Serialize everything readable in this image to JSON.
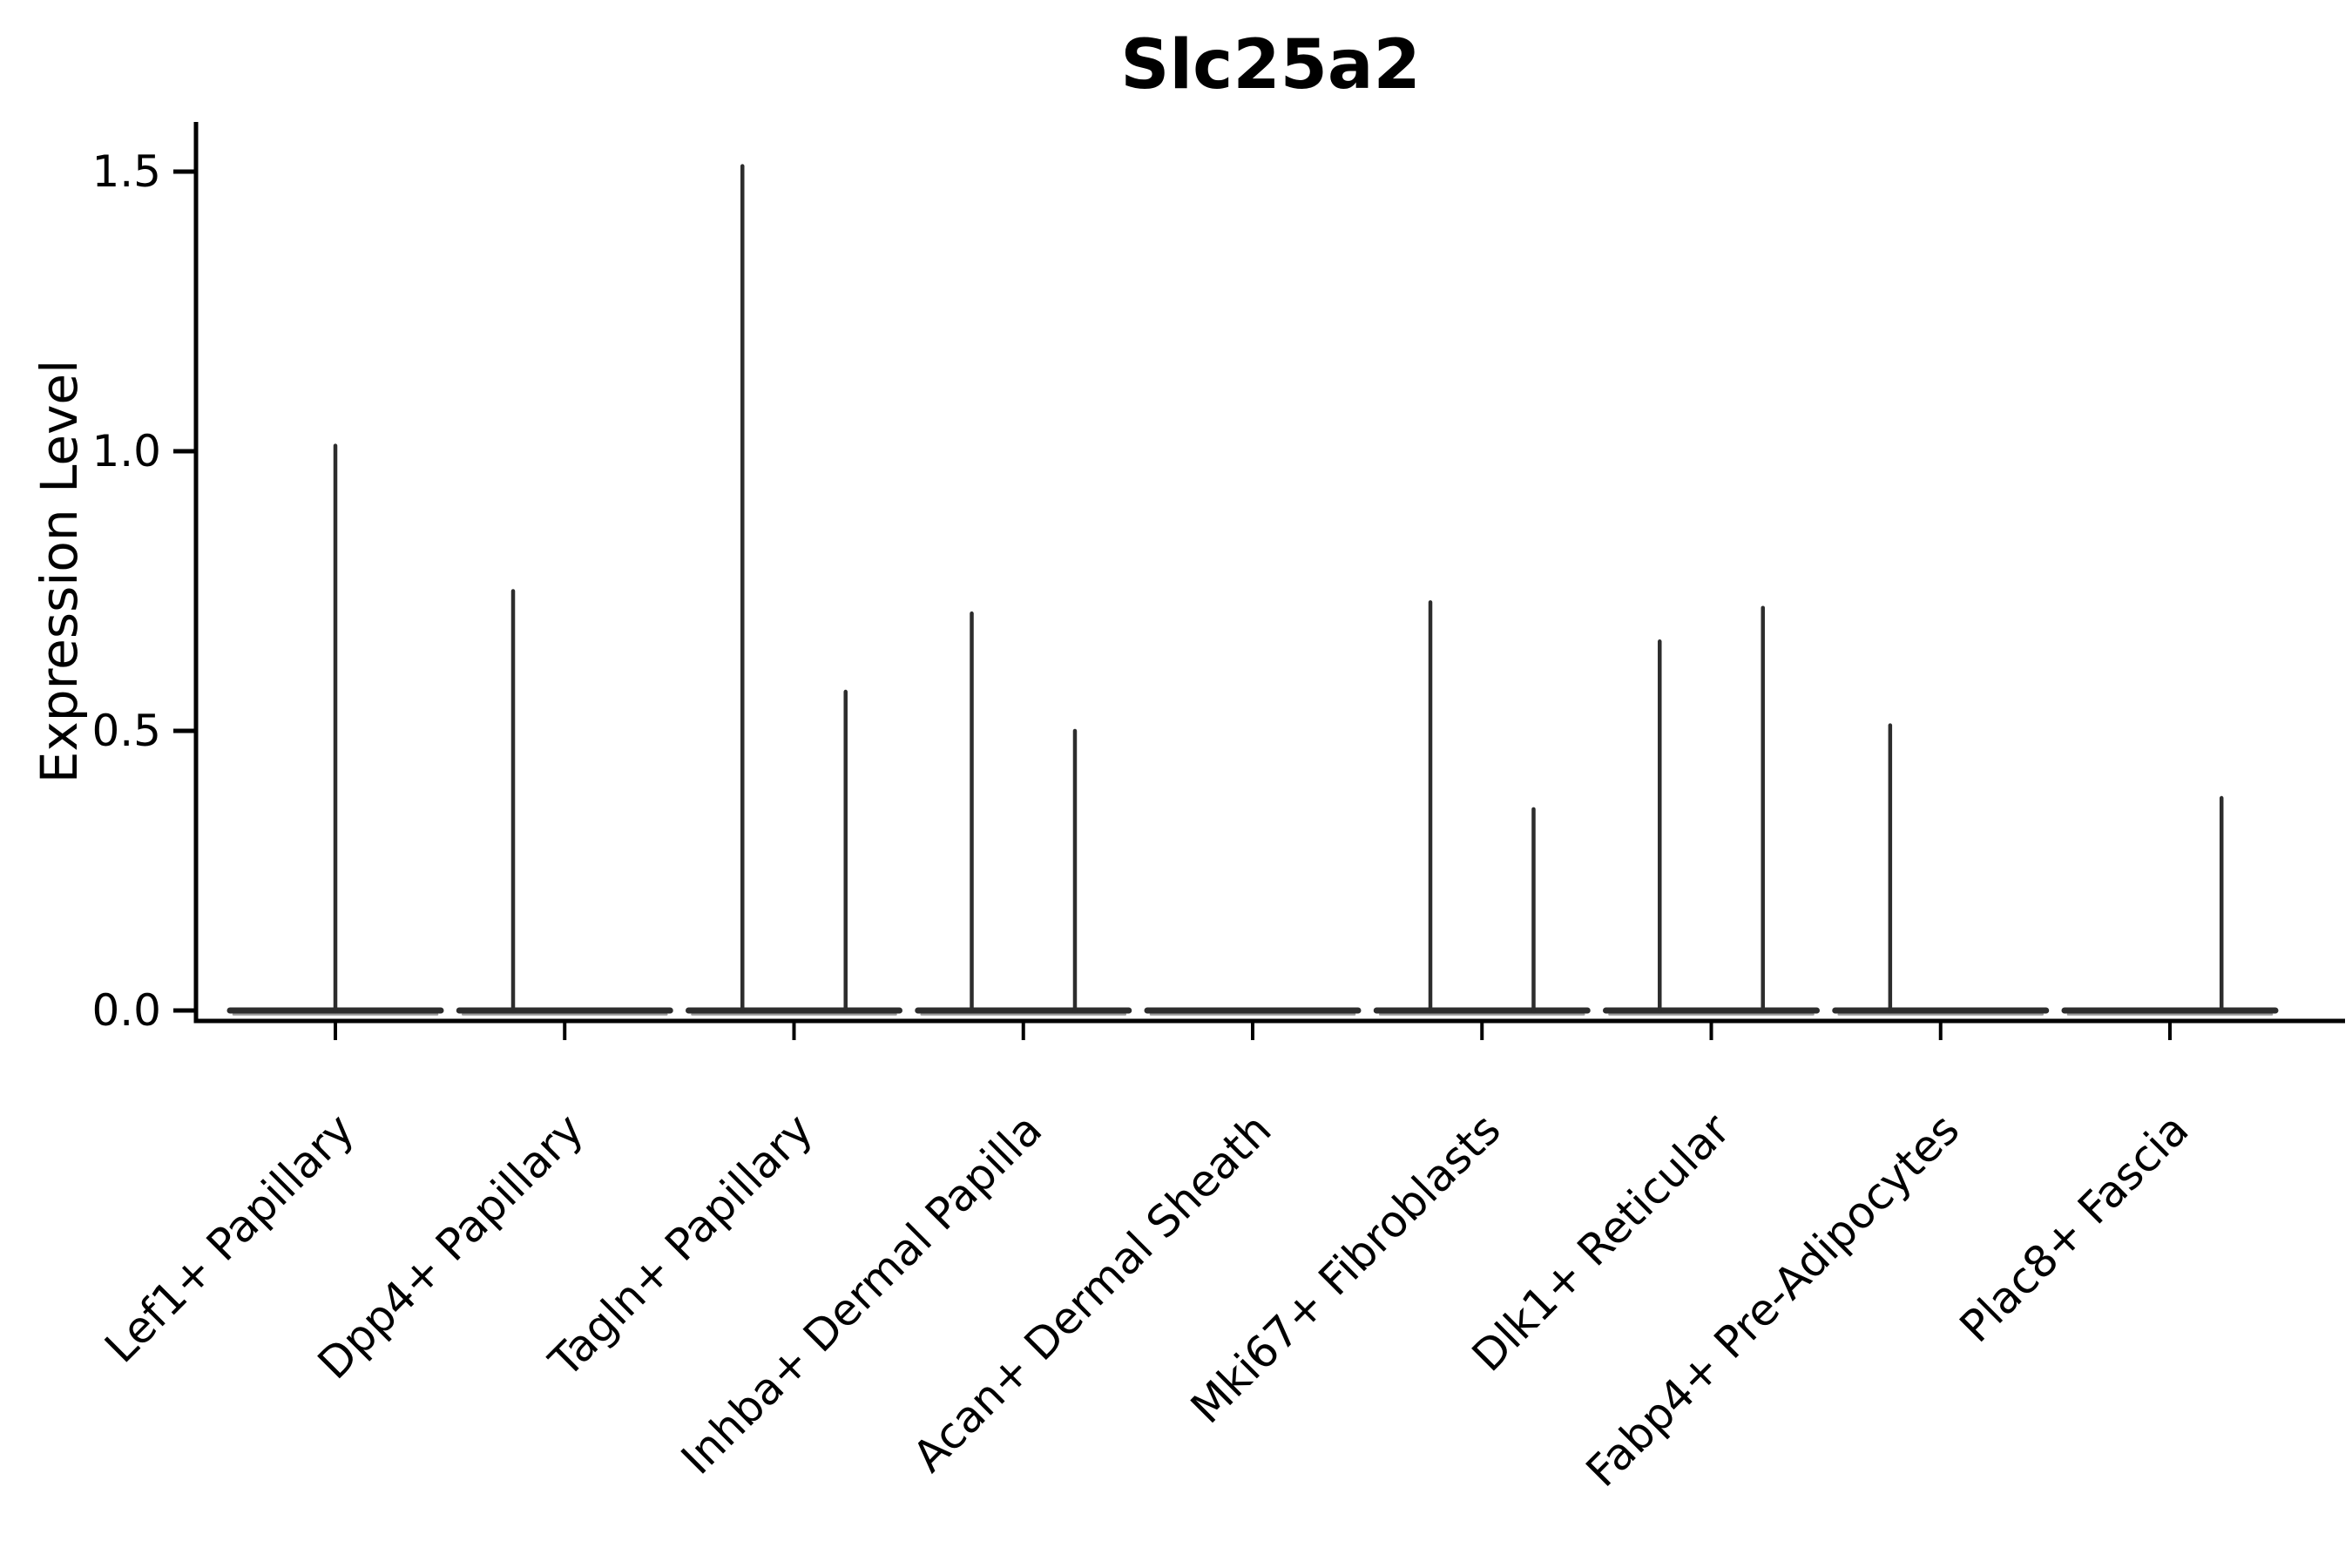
{
  "title": "Slc25a2",
  "colors": {
    "background": "#ffffff",
    "violin_line": "#2d2d2d",
    "violin_halo": "#9a9a9a",
    "axis": "#000000",
    "text": "#000000"
  },
  "chart_data": {
    "type": "violin",
    "title": "Slc25a2",
    "xlabel": "",
    "ylabel": "Expression Level",
    "ylim": [
      0,
      1.59
    ],
    "yticks": [
      0.0,
      0.5,
      1.0,
      1.5
    ],
    "ytick_labels": [
      "0.0",
      "0.5",
      "1.0",
      "1.5"
    ],
    "grid": false,
    "legend_position": "none",
    "x_tick_rotation_deg": 45,
    "categories": [
      "Lef1+ Papillary",
      "Dpp4+ Papillary",
      "Tagln+ Papillary",
      "Inhba+ Dermal Papilla",
      "Acan+ Dermal Sheath",
      "Mki67+ Fibroblasts",
      "Dlk1+ Reticular",
      "Fabp4+ Pre-Adipocytes",
      "Plac8+ Fascia"
    ],
    "violins": [
      {
        "category": "Lef1+ Papillary",
        "baseline_value": 0.0,
        "spikes": [
          {
            "offset": 0.0,
            "max_value": 1.01
          }
        ]
      },
      {
        "category": "Dpp4+ Papillary",
        "baseline_value": 0.0,
        "spikes": [
          {
            "offset": -0.225,
            "max_value": 0.75
          }
        ]
      },
      {
        "category": "Tagln+ Papillary",
        "baseline_value": 0.0,
        "spikes": [
          {
            "offset": -0.225,
            "max_value": 1.51
          },
          {
            "offset": 0.225,
            "max_value": 0.57
          }
        ]
      },
      {
        "category": "Inhba+ Dermal Papilla",
        "baseline_value": 0.0,
        "spikes": [
          {
            "offset": -0.225,
            "max_value": 0.71
          },
          {
            "offset": 0.225,
            "max_value": 0.5
          }
        ]
      },
      {
        "category": "Acan+ Dermal Sheath",
        "baseline_value": 0.0,
        "spikes": []
      },
      {
        "category": "Mki67+ Fibroblasts",
        "baseline_value": 0.0,
        "spikes": [
          {
            "offset": -0.225,
            "max_value": 0.73
          },
          {
            "offset": 0.225,
            "max_value": 0.36
          }
        ]
      },
      {
        "category": "Dlk1+ Reticular",
        "baseline_value": 0.0,
        "spikes": [
          {
            "offset": -0.225,
            "max_value": 0.66
          },
          {
            "offset": 0.225,
            "max_value": 0.72
          }
        ]
      },
      {
        "category": "Fabp4+ Pre-Adipocytes",
        "baseline_value": 0.0,
        "spikes": [
          {
            "offset": -0.22,
            "max_value": 0.51
          }
        ]
      },
      {
        "category": "Plac8+ Fascia",
        "baseline_value": 0.0,
        "spikes": [
          {
            "offset": 0.225,
            "max_value": 0.38
          }
        ]
      }
    ]
  }
}
